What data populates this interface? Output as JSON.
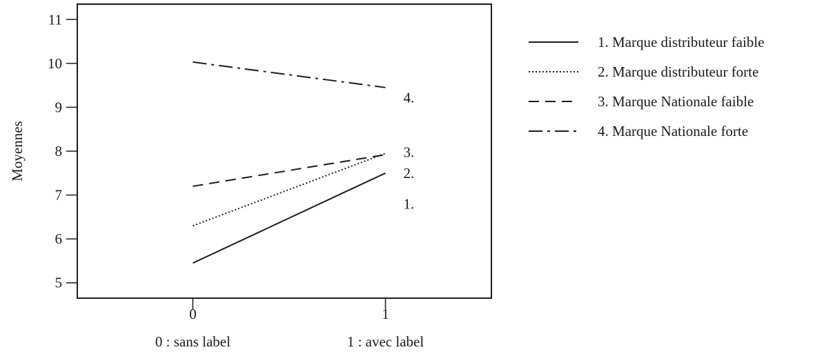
{
  "chart_data": {
    "type": "line",
    "title": "",
    "xlabel": "",
    "ylabel": "Moyennes",
    "x": [
      0,
      1
    ],
    "x_ticks": [
      "0",
      "1"
    ],
    "x_category_labels": [
      "0 : sans label",
      "1 : avec label"
    ],
    "xlim": [
      -0.6,
      1.55
    ],
    "ylim": [
      4.65,
      11.35
    ],
    "y_ticks": [
      5,
      6,
      7,
      8,
      9,
      10,
      11
    ],
    "grid": false,
    "legend_position": "right",
    "series": [
      {
        "name": "1. Marque distributeur faible",
        "values": [
          5.45,
          7.5
        ],
        "end_label": "1.",
        "end_label_y": 6.8,
        "style": "solid"
      },
      {
        "name": "2. Marque distributeur forte",
        "values": [
          6.3,
          7.95
        ],
        "end_label": "2.",
        "end_label_y": 7.5,
        "style": "dotted"
      },
      {
        "name": "3. Marque Nationale faible",
        "values": [
          7.2,
          7.92
        ],
        "end_label": "3.",
        "end_label_y": 7.98,
        "style": "dashed"
      },
      {
        "name": "4. Marque Nationale forte",
        "values": [
          10.03,
          9.45
        ],
        "end_label": "4.",
        "end_label_y": 9.22,
        "style": "dashdot"
      }
    ],
    "colors": {
      "line": "#1a1a1a",
      "background": "#ffffff"
    }
  }
}
